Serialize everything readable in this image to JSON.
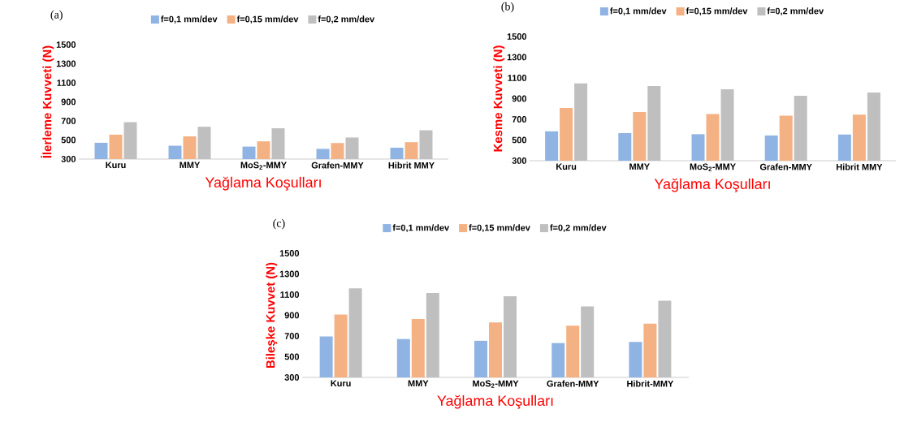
{
  "chart_data": [
    {
      "type": "bar",
      "title": "(a)",
      "xlabel": "Yağlama Koşulları",
      "ylabel": "İlerleme Kuvveti (N)",
      "categories": [
        "Kuru",
        "MMY",
        "MoS$_{2}$-MMY",
        "Grafen-MMY",
        "Hibrit MMY"
      ],
      "series": [
        {
          "name": "f=0,1 mm/dev",
          "color": "#8fb4e3",
          "values": [
            471,
            440,
            431,
            407,
            419
          ]
        },
        {
          "name": "f=0,15 mm/dev",
          "color": "#f4b183",
          "values": [
            556,
            538,
            486,
            468,
            477
          ]
        },
        {
          "name": "f=0,2 mm/dev",
          "color": "#bfbfbf",
          "values": [
            687,
            639,
            623,
            526,
            602
          ]
        }
      ],
      "ylim": [
        300,
        1500
      ],
      "yticks": [
        300,
        500,
        700,
        900,
        1100,
        1300,
        1500
      ],
      "legend": "top",
      "grid": false
    },
    {
      "type": "bar",
      "title": "(b)",
      "xlabel": "Yağlama Koşulları",
      "ylabel": "Kesme Kuvveti (N)",
      "categories": [
        "Kuru",
        "MMY",
        "MoS$_{2}$-MMY",
        "Grafen-MMY",
        "Hibrit MMY"
      ],
      "series": [
        {
          "name": "f=0,1 mm/dev",
          "color": "#8fb4e3",
          "values": [
            584,
            567,
            556,
            544,
            553
          ]
        },
        {
          "name": "f=0,15 mm/dev",
          "color": "#f4b183",
          "values": [
            809,
            770,
            750,
            736,
            744
          ]
        },
        {
          "name": "f=0,2 mm/dev",
          "color": "#bfbfbf",
          "values": [
            1047,
            1022,
            991,
            927,
            958
          ]
        }
      ],
      "ylim": [
        300,
        1500
      ],
      "yticks": [
        300,
        500,
        700,
        900,
        1100,
        1300,
        1500
      ],
      "legend": "top",
      "grid": false
    },
    {
      "type": "bar",
      "title": "(c)",
      "xlabel": "Yağlama Koşulları",
      "ylabel": "Bileşke Kuvvet (N)",
      "categories": [
        "Kuru",
        "MMY",
        "MoS$_{2}$-MMY",
        "Grafen-MMY",
        "Hibrit-MMY"
      ],
      "series": [
        {
          "name": "f=0,1 mm/dev",
          "color": "#8fb4e3",
          "values": [
            696,
            671,
            654,
            632,
            643
          ]
        },
        {
          "name": "f=0,15 mm/dev",
          "color": "#f4b183",
          "values": [
            907,
            865,
            831,
            800,
            820
          ]
        },
        {
          "name": "f=0,2 mm/dev",
          "color": "#bfbfbf",
          "values": [
            1160,
            1115,
            1084,
            986,
            1042
          ]
        }
      ],
      "ylim": [
        300,
        1500
      ],
      "yticks": [
        300,
        500,
        700,
        900,
        1100,
        1300,
        1500
      ],
      "legend": "top",
      "grid": false
    }
  ]
}
